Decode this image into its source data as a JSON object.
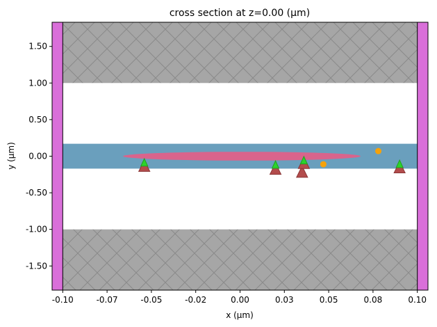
{
  "chart_data": {
    "type": "scatter",
    "title": "cross section at z=0.00 (μm)",
    "xlabel": "x (μm)",
    "ylabel": "y (μm)",
    "xlim": [
      -0.106,
      0.106
    ],
    "ylim": [
      -1.83,
      1.83
    ],
    "x_ticks": [
      -0.1,
      -0.075,
      -0.05,
      -0.025,
      0.0,
      0.025,
      0.05,
      0.075,
      0.1
    ],
    "x_tick_labels": [
      "-0.10",
      "-0.07",
      "-0.05",
      "-0.02",
      "0.00",
      "0.03",
      "0.05",
      "0.08",
      "0.10"
    ],
    "y_ticks": [
      1.5,
      1.0,
      0.5,
      0.0,
      -0.5,
      -1.0,
      -1.5
    ],
    "y_tick_labels": [
      "1.50",
      "1.00",
      "0.50",
      "0.00",
      "-0.50",
      "-1.00",
      "-1.50"
    ],
    "regions": [
      {
        "name": "top-cladding",
        "x": [
          -0.1,
          0.1
        ],
        "y": [
          1.0,
          1.83
        ],
        "color": "#a6a6a6",
        "hatch": "x"
      },
      {
        "name": "bottom-cladding",
        "x": [
          -0.1,
          0.1
        ],
        "y": [
          -1.83,
          -1.0
        ],
        "color": "#a6a6a6",
        "hatch": "x"
      },
      {
        "name": "waveguide-core",
        "x": [
          -0.106,
          0.106
        ],
        "y": [
          -0.17,
          0.17
        ],
        "color": "#6a9fbd"
      },
      {
        "name": "left-boundary",
        "x": [
          -0.106,
          -0.1
        ],
        "y": [
          -1.83,
          1.83
        ],
        "color": "#d96fd9"
      },
      {
        "name": "right-boundary",
        "x": [
          0.1,
          0.106
        ],
        "y": [
          -1.83,
          1.83
        ],
        "color": "#d96fd9"
      }
    ],
    "ellipse": {
      "cx": 0.001,
      "cy": 0.0,
      "rx": 0.067,
      "ry": 0.06,
      "color": "#d9648c"
    },
    "series": [
      {
        "marker": "triangle",
        "color": "#b34c4c",
        "x": [
          -0.054,
          0.02,
          0.035,
          0.036,
          0.09
        ],
        "y": [
          -0.14,
          -0.18,
          -0.22,
          -0.1,
          -0.16
        ]
      },
      {
        "marker": "triangle-small",
        "color": "#2bd42b",
        "x": [
          -0.054,
          0.02,
          0.036,
          0.09
        ],
        "y": [
          -0.09,
          -0.12,
          -0.06,
          -0.11
        ]
      },
      {
        "marker": "circle",
        "color": "#f5a20a",
        "x": [
          0.047,
          0.078
        ],
        "y": [
          -0.11,
          0.07
        ]
      }
    ]
  }
}
